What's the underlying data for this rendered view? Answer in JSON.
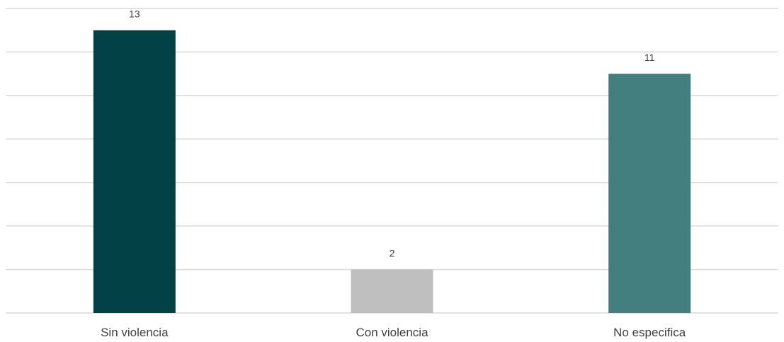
{
  "chart_data": {
    "type": "bar",
    "title": "",
    "xlabel": "",
    "ylabel": "",
    "categories": [
      "Sin violencia",
      "Con violencia",
      "No especifica"
    ],
    "values": [
      13,
      2,
      11
    ],
    "colors": [
      "#024145",
      "#bfbfbf",
      "#427f7e"
    ],
    "ylim": [
      0,
      14
    ],
    "gridlines_step": 2,
    "grid": true,
    "legend": "none",
    "data_labels": [
      "13",
      "2",
      "11"
    ]
  }
}
